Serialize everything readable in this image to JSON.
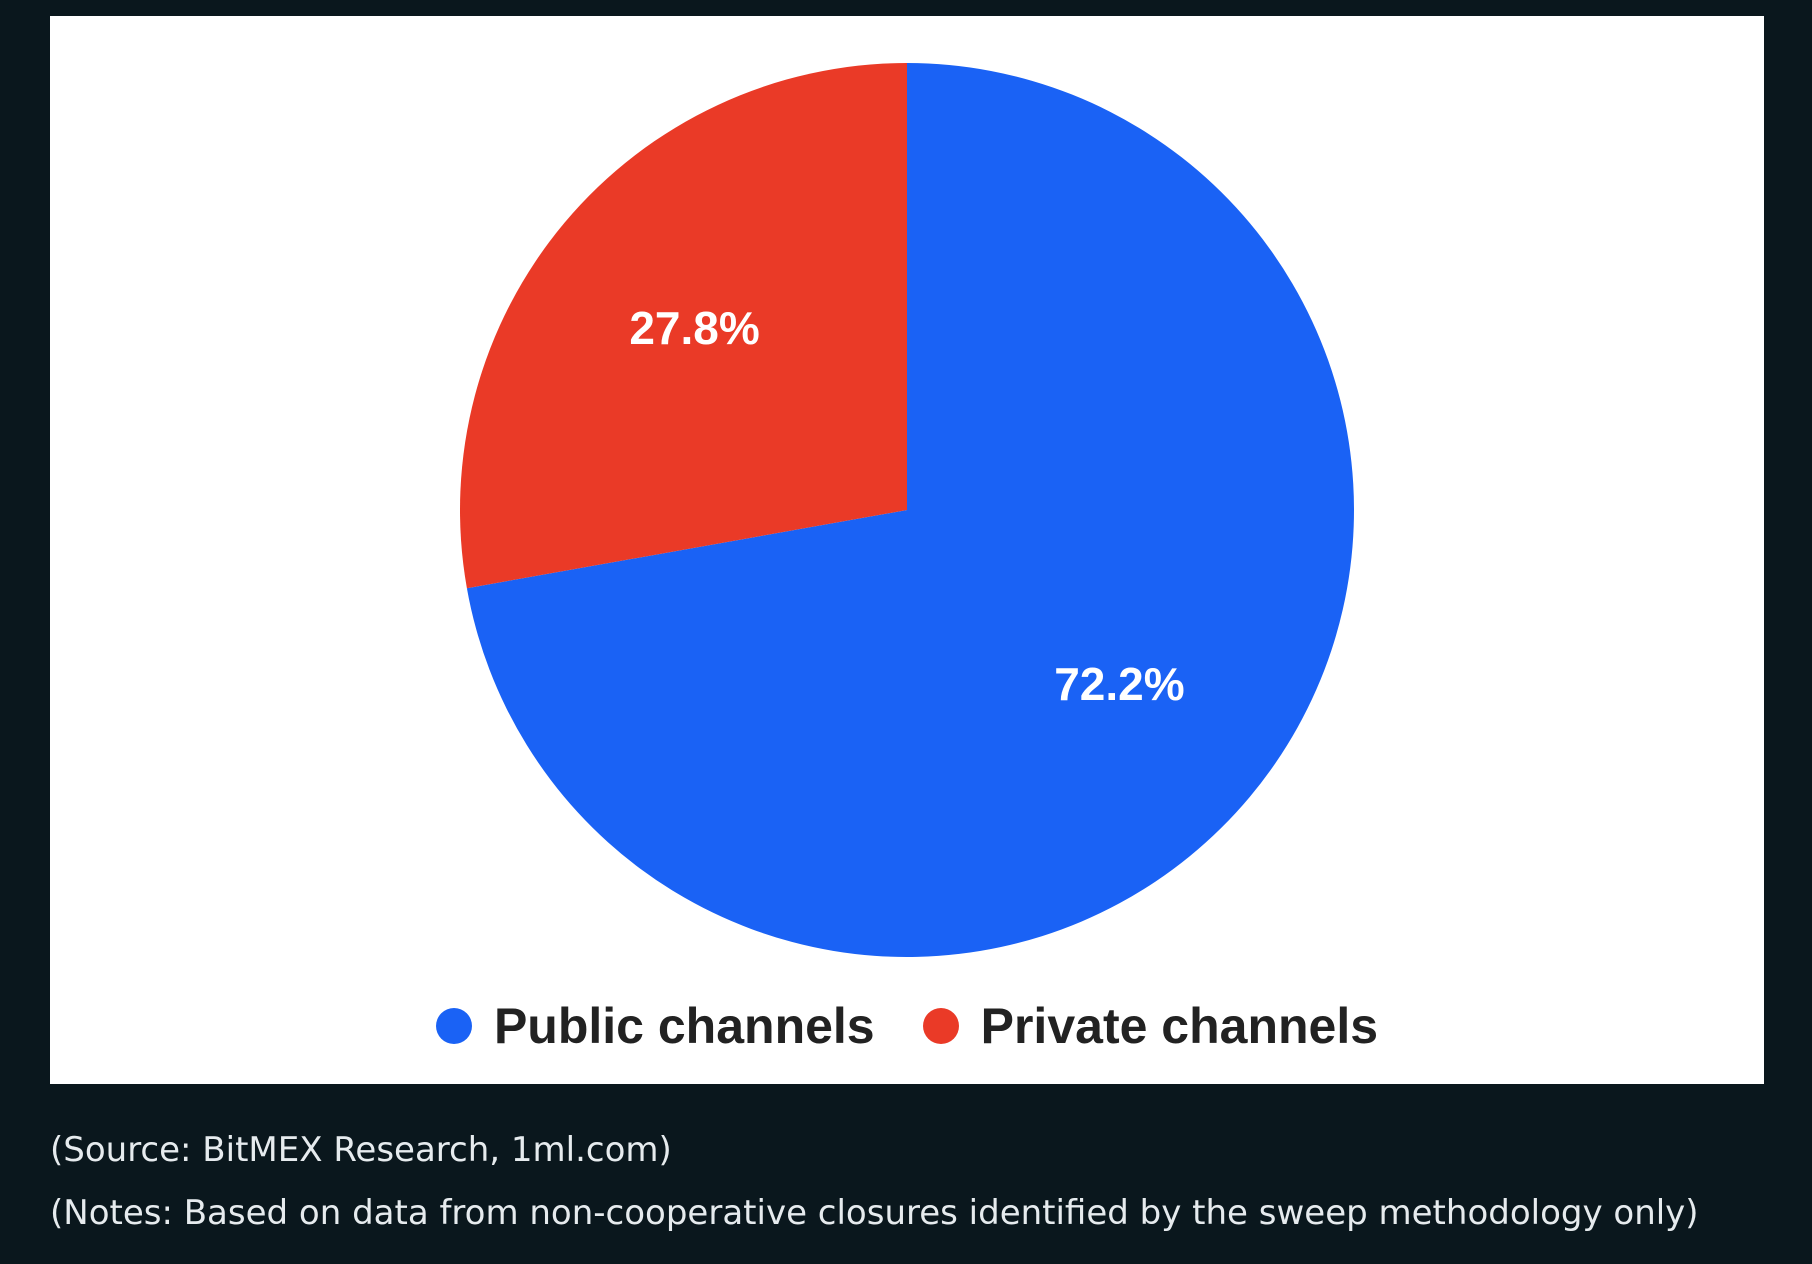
{
  "chart_data": {
    "type": "pie",
    "categories": [
      "Public channels",
      "Private channels"
    ],
    "values": [
      72.2,
      27.8
    ],
    "data_labels": [
      "72.2%",
      "27.8%"
    ],
    "colors": [
      "#1a62f5",
      "#ea3a27"
    ],
    "legend_position": "bottom",
    "start_angle": "12 o'clock, clockwise"
  },
  "legend": {
    "items": [
      {
        "label": "Public channels",
        "color": "#1a62f5"
      },
      {
        "label": "Private channels",
        "color": "#ea3a27"
      }
    ]
  },
  "captions": {
    "source": "(Source: BitMEX Research, 1ml.com)",
    "notes": "(Notes: Based on data from non-cooperative closures identified by the sweep methodology only)"
  }
}
